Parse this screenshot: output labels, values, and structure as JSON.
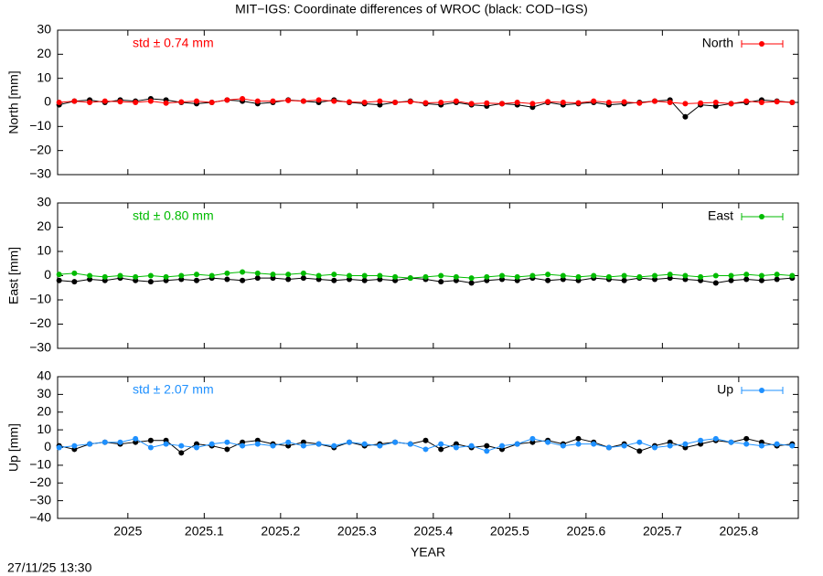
{
  "title": "MIT−IGS: Coordinate differences of WROC (black: COD−IGS)",
  "timestamp": "27/11/25 13:30",
  "chart_data": [
    {
      "type": "line",
      "ylabel": "North [mm]",
      "annotation": "std ± 0.74 mm",
      "annotation_color": "#ff0000",
      "x_tick_labels": false,
      "legend": "upper right",
      "xlim": [
        2024.908,
        2025.878
      ],
      "xticks": [
        2025,
        2025.1,
        2025.2,
        2025.3,
        2025.4,
        2025.5,
        2025.6,
        2025.7,
        2025.8
      ],
      "ylim": [
        -30,
        30
      ],
      "yticks": [
        {
          "value": -30,
          "label": "−30"
        },
        {
          "value": -20,
          "label": "−20"
        },
        {
          "value": -10,
          "label": "−10"
        },
        0,
        10,
        20,
        30
      ],
      "x": [
        2024.91,
        2024.93,
        2024.95,
        2024.97,
        2024.99,
        2025.01,
        2025.03,
        2025.05,
        2025.07,
        2025.09,
        2025.11,
        2025.13,
        2025.15,
        2025.17,
        2025.19,
        2025.21,
        2025.23,
        2025.25,
        2025.27,
        2025.29,
        2025.31,
        2025.33,
        2025.35,
        2025.37,
        2025.39,
        2025.41,
        2025.43,
        2025.45,
        2025.47,
        2025.49,
        2025.51,
        2025.53,
        2025.55,
        2025.57,
        2025.59,
        2025.61,
        2025.63,
        2025.65,
        2025.67,
        2025.69,
        2025.71,
        2025.73,
        2025.75,
        2025.77,
        2025.79,
        2025.81,
        2025.83,
        2025.85,
        2025.87
      ],
      "series": [
        {
          "color": "#000000",
          "values": [
            -1,
            0.5,
            1,
            0,
            1,
            0.5,
            1.5,
            1,
            0,
            -0.5,
            0,
            1,
            0.5,
            -0.5,
            0,
            1,
            0.5,
            0,
            1,
            0,
            -0.5,
            -1,
            0,
            0.5,
            -0.5,
            -1,
            0,
            -1,
            -1.5,
            -0.5,
            -1,
            -2,
            0,
            -1,
            -0.5,
            0,
            -1,
            -0.5,
            0,
            0.5,
            1,
            -6,
            -1,
            -1.5,
            -0.5,
            0,
            1,
            0.5,
            0
          ]
        },
        {
          "name": "North",
          "color": "#ff0000",
          "values": [
            0,
            0.5,
            0,
            0.5,
            0.3,
            0,
            0.5,
            -0.3,
            0.2,
            0.5,
            0,
            1,
            1.5,
            0.5,
            0.5,
            0.8,
            0.5,
            1,
            0.5,
            0.2,
            0,
            0.5,
            0,
            0.3,
            -0.2,
            0,
            0.5,
            -0.5,
            -0.3,
            -0.5,
            0,
            -0.5,
            0.3,
            0,
            -0.2,
            0.5,
            0,
            0.2,
            -0.3,
            0.5,
            0,
            -0.5,
            -0.3,
            0,
            -0.5,
            0.5,
            0,
            0.3,
            0
          ]
        }
      ]
    },
    {
      "type": "line",
      "ylabel": "East [mm]",
      "annotation": "std ± 0.80 mm",
      "annotation_color": "#00bb00",
      "x_tick_labels": false,
      "legend": "upper right",
      "xlim": [
        2024.908,
        2025.878
      ],
      "xticks": [
        2025,
        2025.1,
        2025.2,
        2025.3,
        2025.4,
        2025.5,
        2025.6,
        2025.7,
        2025.8
      ],
      "ylim": [
        -30,
        30
      ],
      "yticks": [
        {
          "value": -30,
          "label": "−30"
        },
        {
          "value": -20,
          "label": "−20"
        },
        {
          "value": -10,
          "label": "−10"
        },
        0,
        10,
        20,
        30
      ],
      "x": [
        2024.91,
        2024.93,
        2024.95,
        2024.97,
        2024.99,
        2025.01,
        2025.03,
        2025.05,
        2025.07,
        2025.09,
        2025.11,
        2025.13,
        2025.15,
        2025.17,
        2025.19,
        2025.21,
        2025.23,
        2025.25,
        2025.27,
        2025.29,
        2025.31,
        2025.33,
        2025.35,
        2025.37,
        2025.39,
        2025.41,
        2025.43,
        2025.45,
        2025.47,
        2025.49,
        2025.51,
        2025.53,
        2025.55,
        2025.57,
        2025.59,
        2025.61,
        2025.63,
        2025.65,
        2025.67,
        2025.69,
        2025.71,
        2025.73,
        2025.75,
        2025.77,
        2025.79,
        2025.81,
        2025.83,
        2025.85,
        2025.87
      ],
      "series": [
        {
          "color": "#000000",
          "values": [
            -2,
            -2.5,
            -1.5,
            -2,
            -1,
            -2,
            -2.5,
            -2,
            -1.5,
            -2,
            -1,
            -1.5,
            -2,
            -1,
            -1,
            -1.5,
            -1,
            -1.5,
            -2,
            -1.5,
            -2,
            -1.5,
            -2,
            -1,
            -1.5,
            -2.5,
            -2,
            -3,
            -2,
            -1.5,
            -2,
            -1,
            -2,
            -1.5,
            -2,
            -1,
            -1.5,
            -2,
            -1,
            -1.5,
            -1,
            -1.5,
            -2,
            -3,
            -2,
            -1.5,
            -2,
            -1.5,
            -1
          ]
        },
        {
          "name": "East",
          "color": "#00bb00",
          "values": [
            0.5,
            1,
            0,
            -0.5,
            0,
            -0.5,
            0,
            -0.5,
            0,
            0.5,
            0,
            1,
            1.5,
            1,
            0.5,
            0.5,
            1,
            0,
            0.5,
            0,
            0,
            0,
            -0.5,
            -1,
            -0.5,
            0,
            -0.5,
            -1,
            -0.5,
            0,
            -0.5,
            0,
            0.5,
            0,
            -0.5,
            0,
            -0.5,
            0,
            -0.5,
            0,
            0.5,
            0,
            -0.5,
            0,
            0,
            0.5,
            0,
            0.5,
            0
          ]
        }
      ]
    },
    {
      "type": "line",
      "ylabel": "Up [mm]",
      "xlabel": "YEAR",
      "annotation": "std ± 2.07 mm",
      "annotation_color": "#1e90ff",
      "x_tick_labels": true,
      "legend": "upper right",
      "xlim": [
        2024.908,
        2025.878
      ],
      "xticks": [
        2025,
        2025.1,
        2025.2,
        2025.3,
        2025.4,
        2025.5,
        2025.6,
        2025.7,
        2025.8
      ],
      "ylim": [
        -40,
        40
      ],
      "yticks": [
        {
          "value": -40,
          "label": "−40"
        },
        {
          "value": -30,
          "label": "−30"
        },
        {
          "value": -20,
          "label": "−20"
        },
        {
          "value": -10,
          "label": "−10"
        },
        0,
        10,
        20,
        30,
        40
      ],
      "x": [
        2024.91,
        2024.93,
        2024.95,
        2024.97,
        2024.99,
        2025.01,
        2025.03,
        2025.05,
        2025.07,
        2025.09,
        2025.11,
        2025.13,
        2025.15,
        2025.17,
        2025.19,
        2025.21,
        2025.23,
        2025.25,
        2025.27,
        2025.29,
        2025.31,
        2025.33,
        2025.35,
        2025.37,
        2025.39,
        2025.41,
        2025.43,
        2025.45,
        2025.47,
        2025.49,
        2025.51,
        2025.53,
        2025.55,
        2025.57,
        2025.59,
        2025.61,
        2025.63,
        2025.65,
        2025.67,
        2025.69,
        2025.71,
        2025.73,
        2025.75,
        2025.77,
        2025.79,
        2025.81,
        2025.83,
        2025.85,
        2025.87
      ],
      "series": [
        {
          "color": "#000000",
          "values": [
            1,
            -1,
            2,
            3,
            2,
            3,
            4,
            4,
            -3,
            2,
            1,
            -1,
            3,
            4,
            2,
            1,
            3,
            2,
            0,
            3,
            1,
            2,
            3,
            2,
            4,
            -1,
            2,
            0,
            1,
            -1,
            2,
            3,
            4,
            2,
            5,
            3,
            0,
            2,
            -2,
            1,
            3,
            0,
            2,
            4,
            3,
            5,
            3,
            1,
            2
          ]
        },
        {
          "name": "Up",
          "color": "#1e90ff",
          "values": [
            0,
            1,
            2,
            3,
            3,
            5,
            0,
            2,
            1,
            0,
            2,
            3,
            1,
            2,
            1,
            3,
            1,
            2,
            1,
            3,
            2,
            1,
            3,
            2,
            -1,
            2,
            0,
            1,
            -2,
            1,
            2,
            5,
            3,
            1,
            2,
            2,
            0,
            1,
            3,
            0,
            1,
            2,
            4,
            5,
            3,
            2,
            1,
            2,
            1
          ]
        }
      ]
    }
  ]
}
